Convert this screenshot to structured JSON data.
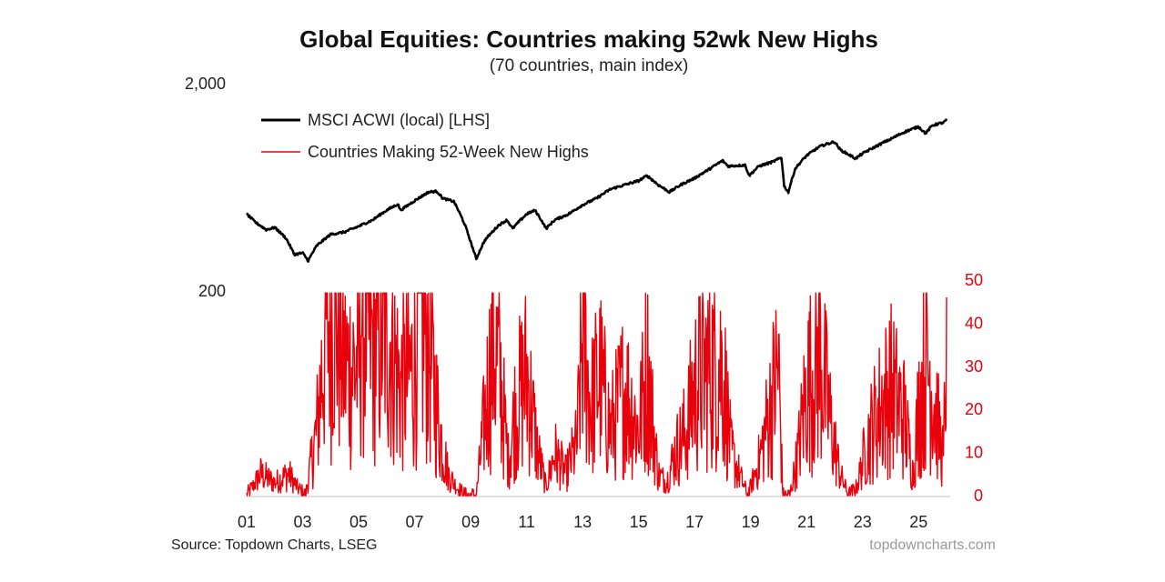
{
  "chart_data": {
    "type": "line",
    "title": "Global Equities: Countries making 52wk New Highs",
    "subtitle": "(70 countries, main index)",
    "source": "Source: Topdown Charts, LSEG",
    "watermark": "topdowncharts.com",
    "x_tick_labels": [
      "01",
      "03",
      "05",
      "07",
      "09",
      "11",
      "13",
      "15",
      "17",
      "19",
      "21",
      "23",
      "25"
    ],
    "x_tick_years": [
      2001,
      2003,
      2005,
      2007,
      2009,
      2011,
      2013,
      2015,
      2017,
      2019,
      2021,
      2023,
      2025
    ],
    "x_range": [
      2001.0,
      2026.0
    ],
    "left_axis": {
      "scale": "log",
      "ylim": [
        200,
        2000
      ],
      "tick_labels": [
        "200",
        "2,000"
      ],
      "tick_values": [
        200,
        2000
      ]
    },
    "right_axis": {
      "scale": "linear",
      "ylim": [
        0,
        50
      ],
      "tick_labels": [
        "0",
        "10",
        "20",
        "30",
        "40",
        "50"
      ],
      "tick_values": [
        0,
        10,
        20,
        30,
        40,
        50
      ],
      "color": "#e8000b"
    },
    "grid": false,
    "legend_position": "top-left",
    "series": [
      {
        "name": "MSCI ACWI (local) [LHS]",
        "axis": "left",
        "color": "#000000",
        "points": [
          [
            2001.0,
            470
          ],
          [
            2001.3,
            430
          ],
          [
            2001.7,
            395
          ],
          [
            2002.0,
            405
          ],
          [
            2002.4,
            360
          ],
          [
            2002.7,
            300
          ],
          [
            2003.0,
            305
          ],
          [
            2003.2,
            280
          ],
          [
            2003.5,
            330
          ],
          [
            2004.0,
            375
          ],
          [
            2004.5,
            385
          ],
          [
            2005.0,
            410
          ],
          [
            2005.5,
            440
          ],
          [
            2006.0,
            490
          ],
          [
            2006.4,
            525
          ],
          [
            2006.5,
            490
          ],
          [
            2007.0,
            545
          ],
          [
            2007.5,
            600
          ],
          [
            2007.8,
            605
          ],
          [
            2008.0,
            560
          ],
          [
            2008.4,
            540
          ],
          [
            2008.8,
            415
          ],
          [
            2009.0,
            345
          ],
          [
            2009.2,
            285
          ],
          [
            2009.5,
            350
          ],
          [
            2010.0,
            415
          ],
          [
            2010.3,
            440
          ],
          [
            2010.5,
            400
          ],
          [
            2011.0,
            470
          ],
          [
            2011.3,
            490
          ],
          [
            2011.7,
            400
          ],
          [
            2012.0,
            440
          ],
          [
            2012.5,
            470
          ],
          [
            2013.0,
            520
          ],
          [
            2013.5,
            560
          ],
          [
            2014.0,
            620
          ],
          [
            2014.5,
            650
          ],
          [
            2015.0,
            680
          ],
          [
            2015.3,
            720
          ],
          [
            2015.7,
            650
          ],
          [
            2016.1,
            600
          ],
          [
            2016.5,
            650
          ],
          [
            2017.0,
            700
          ],
          [
            2017.5,
            770
          ],
          [
            2018.0,
            850
          ],
          [
            2018.2,
            800
          ],
          [
            2018.8,
            810
          ],
          [
            2018.95,
            720
          ],
          [
            2019.3,
            800
          ],
          [
            2019.8,
            840
          ],
          [
            2020.1,
            880
          ],
          [
            2020.2,
            640
          ],
          [
            2020.35,
            600
          ],
          [
            2020.6,
            780
          ],
          [
            2021.0,
            900
          ],
          [
            2021.5,
            1000
          ],
          [
            2022.0,
            1050
          ],
          [
            2022.2,
            960
          ],
          [
            2022.75,
            870
          ],
          [
            2023.0,
            920
          ],
          [
            2023.5,
            1000
          ],
          [
            2024.0,
            1080
          ],
          [
            2024.5,
            1170
          ],
          [
            2025.0,
            1240
          ],
          [
            2025.25,
            1150
          ],
          [
            2025.5,
            1260
          ],
          [
            2025.9,
            1300
          ],
          [
            2026.0,
            1340
          ]
        ]
      },
      {
        "name": "Countries Making 52-Week New Highs",
        "axis": "right",
        "color": "#e8000b",
        "points": [
          [
            2001.0,
            0
          ],
          [
            2001.5,
            5
          ],
          [
            2002.0,
            3
          ],
          [
            2002.5,
            5
          ],
          [
            2002.8,
            2
          ],
          [
            2003.1,
            0
          ],
          [
            2003.5,
            15
          ],
          [
            2003.85,
            40
          ],
          [
            2004.1,
            45
          ],
          [
            2004.5,
            30
          ],
          [
            2005.0,
            30
          ],
          [
            2005.1,
            45
          ],
          [
            2005.5,
            35
          ],
          [
            2006.0,
            40
          ],
          [
            2006.5,
            25
          ],
          [
            2007.0,
            30
          ],
          [
            2007.1,
            43
          ],
          [
            2007.5,
            35
          ],
          [
            2007.9,
            15
          ],
          [
            2008.2,
            5
          ],
          [
            2008.5,
            2
          ],
          [
            2008.8,
            0
          ],
          [
            2009.2,
            0
          ],
          [
            2009.4,
            12
          ],
          [
            2009.8,
            35
          ],
          [
            2010.0,
            30
          ],
          [
            2010.35,
            8
          ],
          [
            2010.6,
            20
          ],
          [
            2011.0,
            28
          ],
          [
            2011.4,
            10
          ],
          [
            2011.7,
            2
          ],
          [
            2012.0,
            10
          ],
          [
            2012.4,
            5
          ],
          [
            2012.8,
            12
          ],
          [
            2013.0,
            38
          ],
          [
            2013.3,
            20
          ],
          [
            2013.6,
            28
          ],
          [
            2014.0,
            15
          ],
          [
            2014.5,
            25
          ],
          [
            2015.0,
            15
          ],
          [
            2015.3,
            30
          ],
          [
            2015.7,
            5
          ],
          [
            2016.0,
            3
          ],
          [
            2016.3,
            10
          ],
          [
            2016.7,
            15
          ],
          [
            2017.0,
            25
          ],
          [
            2017.5,
            30
          ],
          [
            2018.0,
            30
          ],
          [
            2018.3,
            10
          ],
          [
            2018.6,
            5
          ],
          [
            2018.9,
            0
          ],
          [
            2019.3,
            8
          ],
          [
            2019.7,
            20
          ],
          [
            2020.0,
            30
          ],
          [
            2020.15,
            0
          ],
          [
            2020.4,
            0
          ],
          [
            2020.7,
            10
          ],
          [
            2021.0,
            25
          ],
          [
            2021.5,
            32
          ],
          [
            2021.9,
            15
          ],
          [
            2022.2,
            5
          ],
          [
            2022.5,
            0
          ],
          [
            2022.8,
            2
          ],
          [
            2023.0,
            8
          ],
          [
            2023.3,
            15
          ],
          [
            2023.6,
            20
          ],
          [
            2024.0,
            25
          ],
          [
            2024.5,
            18
          ],
          [
            2024.8,
            5
          ],
          [
            2025.0,
            20
          ],
          [
            2025.3,
            32
          ],
          [
            2025.6,
            20
          ],
          [
            2025.9,
            8
          ],
          [
            2026.0,
            46
          ]
        ]
      }
    ]
  }
}
